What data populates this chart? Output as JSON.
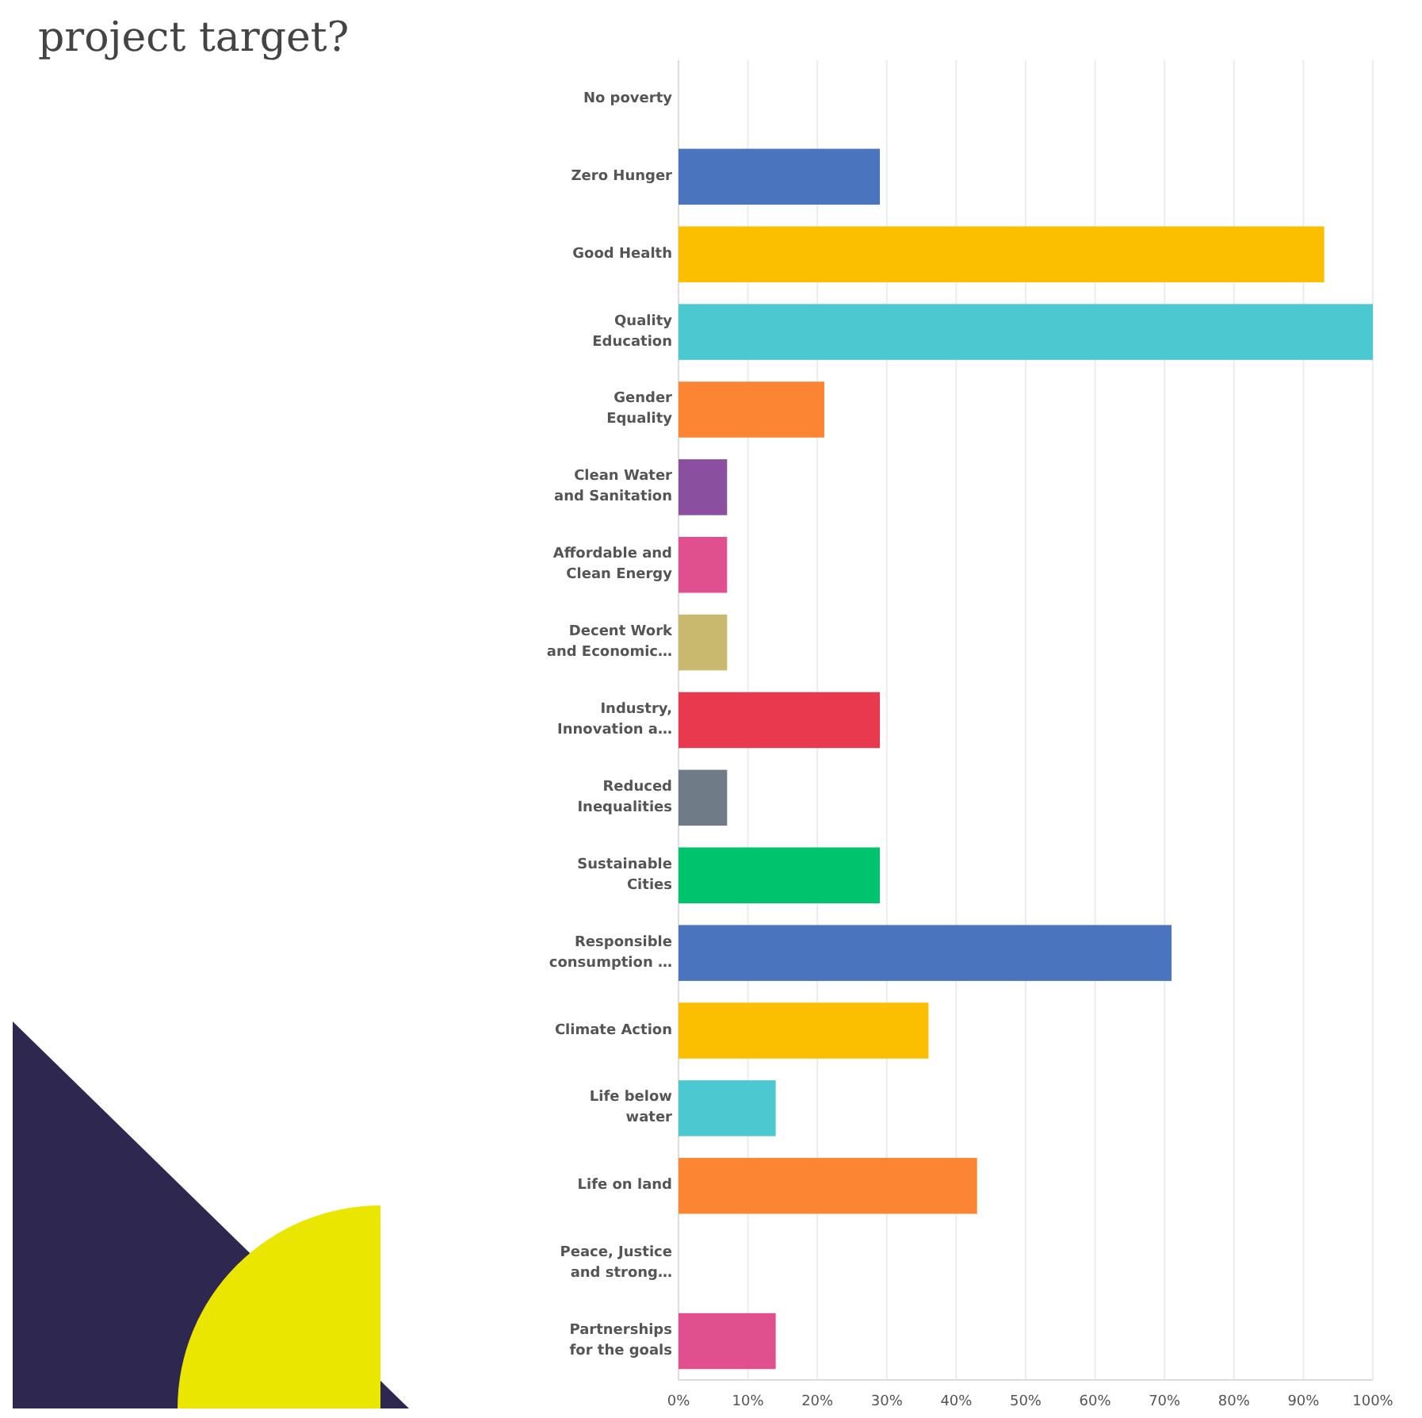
{
  "chart_data": {
    "type": "bar",
    "orientation": "horizontal",
    "title": "project target?",
    "categories": [
      "No poverty",
      "Zero Hunger",
      "Good Health",
      "Quality Education",
      "Gender Equality",
      "Clean Water and Sanitation",
      "Affordable and Clean Energy",
      "Decent Work and Economic…",
      "Industry, Innovation a…",
      "Reduced Inequalities",
      "Sustainable Cities",
      "Responsible consumption …",
      "Climate Action",
      "Life below water",
      "Life on land",
      "Peace, Justice and strong…",
      "Partnerships for the goals"
    ],
    "values": [
      0,
      29,
      93,
      100,
      21,
      7,
      7,
      7,
      29,
      7,
      29,
      71,
      36,
      14,
      43,
      0,
      14
    ],
    "colors": [
      "#4a74bd",
      "#4a74bd",
      "#fcbf00",
      "#4cc9d0",
      "#fb8533",
      "#8a4f9e",
      "#e0508e",
      "#c9b96f",
      "#e8394f",
      "#6f7b86",
      "#00c36e",
      "#4a74bd",
      "#fcbf00",
      "#4cc9d0",
      "#fb8533",
      "#8a4f9e",
      "#e0508e"
    ],
    "xlim": [
      0,
      100
    ],
    "xticks": [
      {
        "value": 0,
        "label": "0%"
      },
      {
        "value": 10,
        "label": "10%"
      },
      {
        "value": 20,
        "label": "20%"
      },
      {
        "value": 30,
        "label": "30%"
      },
      {
        "value": 40,
        "label": "40%"
      },
      {
        "value": 50,
        "label": "50%"
      },
      {
        "value": 60,
        "label": "60%"
      },
      {
        "value": 70,
        "label": "70%"
      },
      {
        "value": 80,
        "label": "80%"
      },
      {
        "value": 90,
        "label": "90%"
      },
      {
        "value": 100,
        "label": "100%"
      }
    ],
    "grid": "x"
  }
}
